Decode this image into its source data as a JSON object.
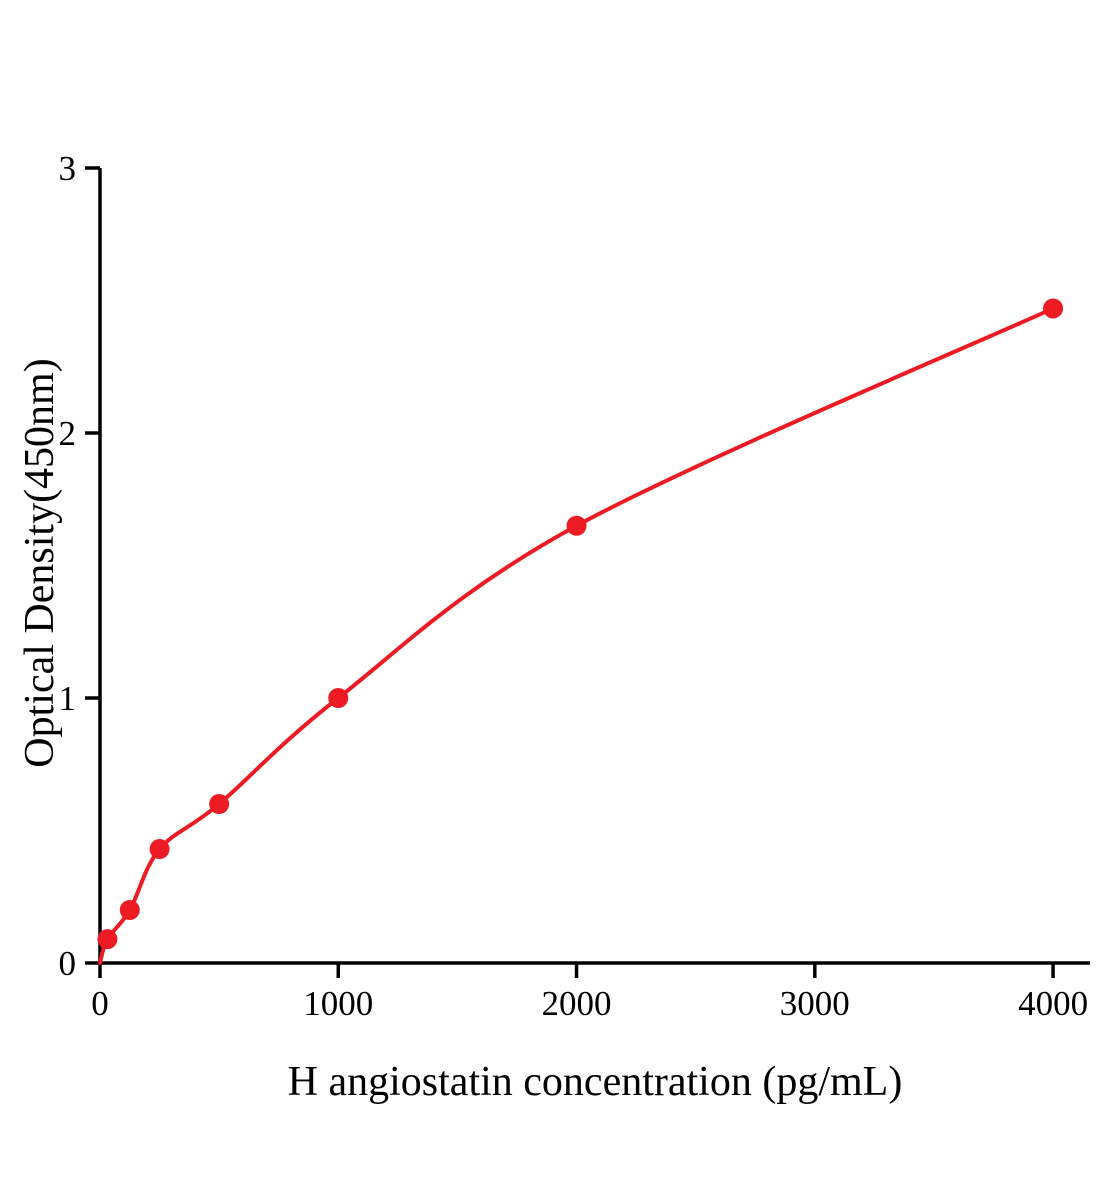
{
  "chart_data": {
    "type": "scatter",
    "title": "",
    "xlabel": "H angiostatin concentration (pg/mL)",
    "ylabel": "Optical Density(450nm)",
    "xlim": [
      0,
      4155
    ],
    "ylim": [
      0,
      3
    ],
    "x_ticks": [
      0,
      1000,
      2000,
      3000,
      4000
    ],
    "y_ticks": [
      0,
      1,
      2,
      3
    ],
    "grid": false,
    "legend": "none",
    "curve_start": {
      "x": 0,
      "y": 0
    },
    "series": [
      {
        "name": "standard-curve",
        "color": "#ed1c24",
        "marker": "circle",
        "points": [
          {
            "x": 31.2,
            "y": 0.09
          },
          {
            "x": 125,
            "y": 0.2
          },
          {
            "x": 250,
            "y": 0.43
          },
          {
            "x": 500,
            "y": 0.6
          },
          {
            "x": 1000,
            "y": 1.0
          },
          {
            "x": 2000,
            "y": 1.65
          },
          {
            "x": 4000,
            "y": 2.47
          }
        ]
      }
    ]
  },
  "style": {
    "axis_color": "#000000",
    "tick_label_size": 35,
    "point_radius": 10,
    "line_width": 4
  }
}
